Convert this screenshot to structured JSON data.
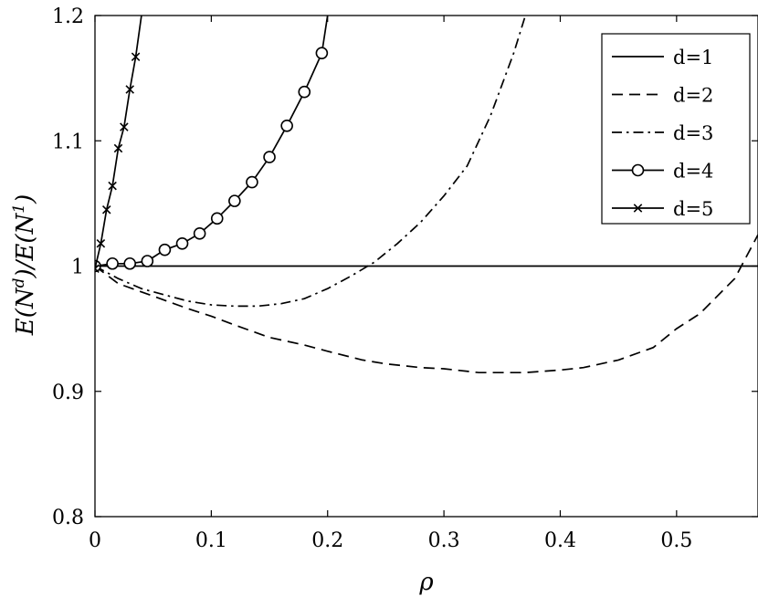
{
  "chart_data": {
    "type": "line",
    "xlabel": "ρ",
    "ylabel_parts": [
      "E(N",
      "d",
      ")/E(N",
      "1",
      ")"
    ],
    "xlim": [
      0,
      0.57
    ],
    "ylim": [
      0.8,
      1.2
    ],
    "xticks": [
      0,
      0.1,
      0.2,
      0.3,
      0.4,
      0.5
    ],
    "yticks": [
      0.8,
      0.9,
      1,
      1.1,
      1.2
    ],
    "xtick_labels": [
      "0",
      "0.1",
      "0.2",
      "0.3",
      "0.4",
      "0.5"
    ],
    "ytick_labels": [
      "0.8",
      "0.9",
      "1",
      "1.1",
      "1.2"
    ],
    "grid": false,
    "legend_position": "top-right",
    "series": [
      {
        "name": "d=1",
        "style": "solid",
        "marker": "none",
        "x": [
          0,
          0.57
        ],
        "y": [
          1,
          1
        ]
      },
      {
        "name": "d=2",
        "style": "dashed",
        "marker": "none",
        "x": [
          0,
          0.02,
          0.05,
          0.08,
          0.1,
          0.12,
          0.15,
          0.18,
          0.2,
          0.23,
          0.25,
          0.28,
          0.3,
          0.33,
          0.35,
          0.37,
          0.4,
          0.42,
          0.45,
          0.48,
          0.5,
          0.52,
          0.55,
          0.57
        ],
        "y": [
          1.0,
          0.986,
          0.976,
          0.966,
          0.96,
          0.953,
          0.943,
          0.937,
          0.932,
          0.925,
          0.922,
          0.919,
          0.918,
          0.915,
          0.915,
          0.915,
          0.917,
          0.919,
          0.925,
          0.935,
          0.95,
          0.962,
          0.99,
          1.025
        ]
      },
      {
        "name": "d=3",
        "style": "dashdot",
        "marker": "none",
        "x": [
          0,
          0.02,
          0.04,
          0.06,
          0.08,
          0.1,
          0.12,
          0.14,
          0.16,
          0.18,
          0.2,
          0.22,
          0.24,
          0.26,
          0.28,
          0.3,
          0.32,
          0.34,
          0.36,
          0.37
        ],
        "y": [
          1.0,
          0.99,
          0.982,
          0.977,
          0.972,
          0.969,
          0.968,
          0.968,
          0.97,
          0.974,
          0.982,
          0.992,
          1.003,
          1.018,
          1.035,
          1.056,
          1.08,
          1.12,
          1.17,
          1.2
        ]
      },
      {
        "name": "d=4",
        "style": "solid",
        "marker": "circle",
        "x": [
          0,
          0.015,
          0.03,
          0.045,
          0.06,
          0.075,
          0.09,
          0.105,
          0.12,
          0.135,
          0.15,
          0.165,
          0.18,
          0.195,
          0.2
        ],
        "y": [
          1.0,
          1.002,
          1.002,
          1.004,
          1.013,
          1.018,
          1.026,
          1.038,
          1.052,
          1.067,
          1.087,
          1.112,
          1.139,
          1.17,
          1.2
        ]
      },
      {
        "name": "d=5",
        "style": "solid",
        "marker": "x",
        "x": [
          0,
          0.005,
          0.01,
          0.015,
          0.02,
          0.025,
          0.03,
          0.035,
          0.04
        ],
        "y": [
          0.998,
          1.018,
          1.045,
          1.064,
          1.094,
          1.111,
          1.141,
          1.167,
          1.2
        ]
      }
    ]
  }
}
